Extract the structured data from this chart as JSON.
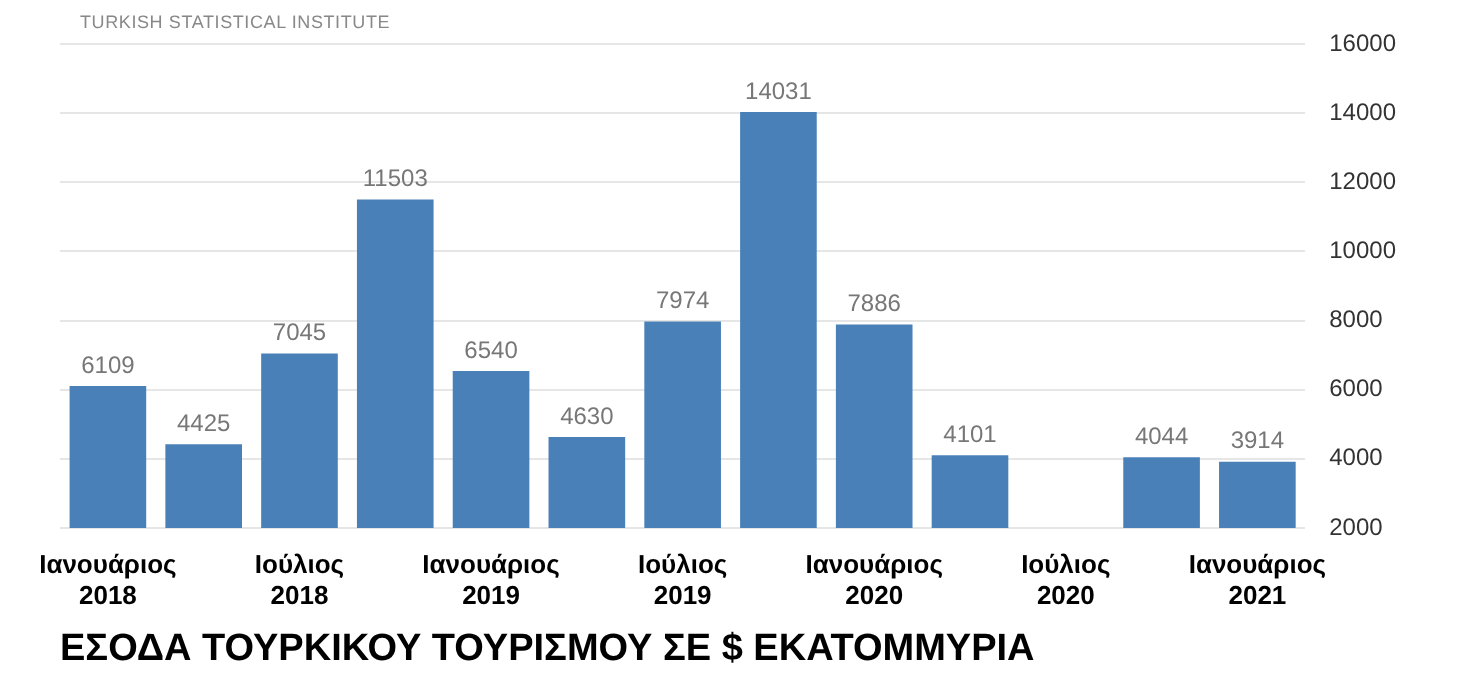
{
  "chart_data": {
    "type": "bar",
    "title": "ΕΣΟΔΑ ΤΟΥΡΚΙΚΟΥ ΤΟΥΡΙΣΜΟΥ ΣΕ $ ΕΚΑΤΟΜΜΥΡΙΑ",
    "annotations": [
      "TURKISH STATISTICAL INSTITUTE"
    ],
    "categories": [
      "Ιανουάριος 2018",
      null,
      "Ιούλιος 2018",
      null,
      "Ιανουάριος 2019",
      null,
      "Ιούλιος 2019",
      null,
      "Ιανουάριος 2020",
      null,
      "Ιούλιος 2020",
      null,
      "Ιανουάριος 2021"
    ],
    "values": [
      6109,
      4425,
      7045,
      11503,
      6540,
      4630,
      7974,
      14031,
      7886,
      4101,
      null,
      4044,
      3914
    ],
    "color": "#4a80b8",
    "ylim": [
      2000,
      16000
    ],
    "yticks": [
      2000,
      4000,
      6000,
      8000,
      10000,
      12000,
      14000,
      16000
    ],
    "grid": "y",
    "legend": false,
    "data_labels": true
  }
}
